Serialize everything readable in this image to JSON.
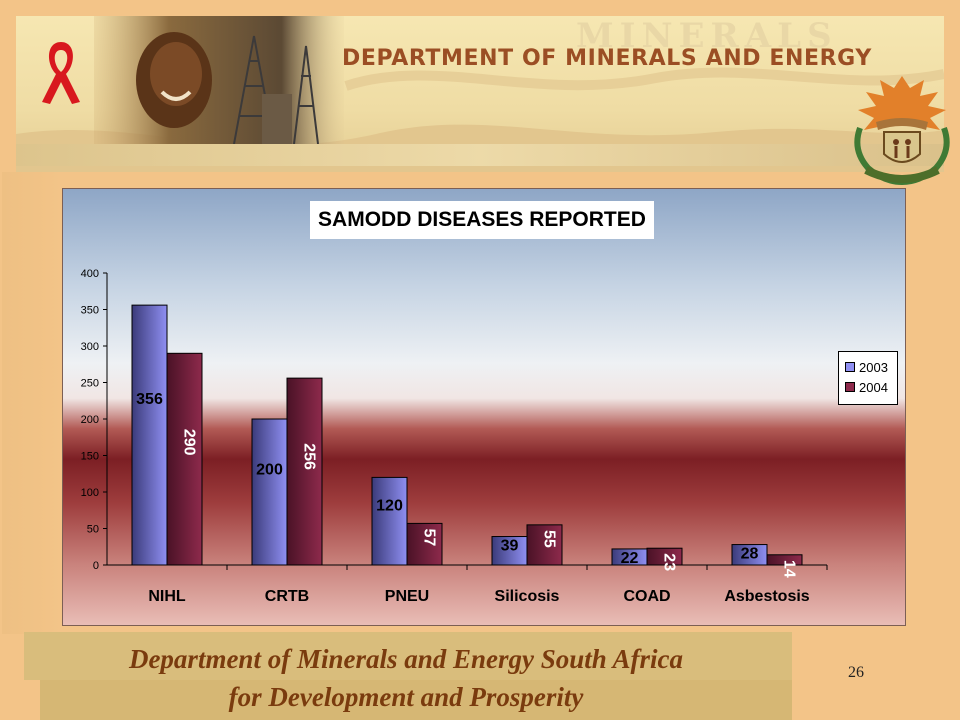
{
  "header": {
    "title": "DEPARTMENT OF MINERALS AND ENERGY",
    "ghost_text": "MINERALS"
  },
  "colors": {
    "series_2003": "#8f8ff2",
    "series_2004": "#8e2a4c",
    "footer_text": "#7a3b0e",
    "header_text": "#9b4e24"
  },
  "chart_data": {
    "type": "bar",
    "title": "SAMODD DISEASES REPORTED",
    "categories": [
      "NIHL",
      "CRTB",
      "PNEU",
      "Silicosis",
      "COAD",
      "Asbestosis"
    ],
    "series": [
      {
        "name": "2003",
        "values": [
          356,
          200,
          120,
          39,
          22,
          28
        ]
      },
      {
        "name": "2004",
        "values": [
          290,
          256,
          57,
          55,
          23,
          14
        ]
      }
    ],
    "ylim": [
      0,
      400
    ],
    "yticks": [
      "0",
      "50",
      "100",
      "150",
      "200",
      "250",
      "300",
      "350",
      "400"
    ],
    "xlabel": "",
    "ylabel": "",
    "grid": false,
    "legend_position": "right",
    "data_labels": true
  },
  "footer": {
    "line1": "Department of Minerals and Energy South Africa",
    "line2": "for Development and Prosperity"
  },
  "page_number": "26"
}
